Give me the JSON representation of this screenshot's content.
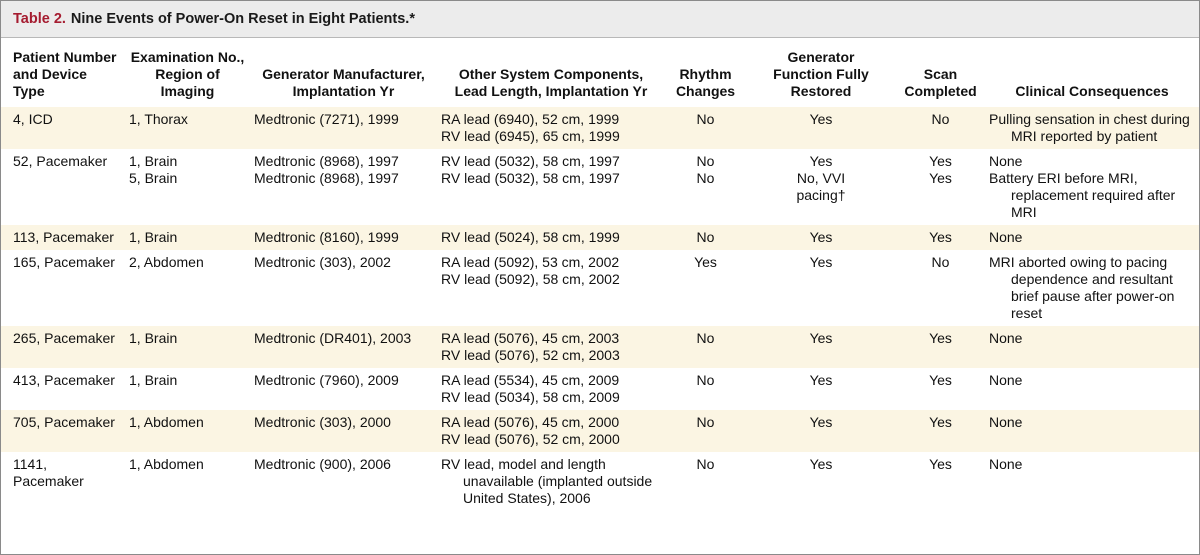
{
  "title": {
    "label": "Table 2.",
    "text": "Nine Events of Power-On Reset in Eight Patients.*"
  },
  "columns": [
    [
      "Patient Number",
      "and Device Type"
    ],
    [
      "Examination No.,",
      "Region of Imaging"
    ],
    [
      "Generator Manufacturer,",
      "Implantation Yr"
    ],
    [
      "Other System Components,",
      "Lead Length, Implantation Yr"
    ],
    [
      "Rhythm",
      "Changes"
    ],
    [
      "Generator",
      "Function Fully",
      "Restored"
    ],
    [
      "Scan",
      "Completed"
    ],
    [
      "Clinical Consequences"
    ]
  ],
  "rows": [
    {
      "patient": "4, ICD",
      "exam": [
        "1, Thorax"
      ],
      "generator": [
        "Medtronic (7271), 1999"
      ],
      "components": [
        "RA lead (6940), 52 cm, 1999",
        "RV lead (6945), 65 cm, 1999"
      ],
      "rhythm": [
        "No"
      ],
      "restored": [
        "Yes"
      ],
      "scan": [
        "No"
      ],
      "consequences": [
        "Pulling sensation in chest during MRI reported by patient"
      ]
    },
    {
      "patient": "52, Pacemaker",
      "exam": [
        "1, Brain",
        "5, Brain"
      ],
      "generator": [
        "Medtronic (8968), 1997",
        "Medtronic (8968), 1997"
      ],
      "components": [
        "RV lead (5032), 58 cm, 1997",
        "RV lead (5032), 58 cm, 1997"
      ],
      "rhythm": [
        "No",
        "No"
      ],
      "restored": [
        "Yes",
        "No, VVI",
        "pacing†"
      ],
      "scan": [
        "Yes",
        "Yes"
      ],
      "consequences": [
        "None",
        "Battery ERI before MRI, replacement required after MRI"
      ]
    },
    {
      "patient": "113, Pacemaker",
      "exam": [
        "1, Brain"
      ],
      "generator": [
        "Medtronic (8160), 1999"
      ],
      "components": [
        "RV lead (5024), 58 cm, 1999"
      ],
      "rhythm": [
        "No"
      ],
      "restored": [
        "Yes"
      ],
      "scan": [
        "Yes"
      ],
      "consequences": [
        "None"
      ]
    },
    {
      "patient": "165, Pacemaker",
      "exam": [
        "2, Abdomen"
      ],
      "generator": [
        "Medtronic (303), 2002"
      ],
      "components": [
        "RA lead (5092), 53 cm, 2002",
        "RV lead (5092), 58 cm, 2002"
      ],
      "rhythm": [
        "Yes"
      ],
      "restored": [
        "Yes"
      ],
      "scan": [
        "No"
      ],
      "consequences": [
        "MRI aborted owing to pacing dependence and resultant brief pause after power-on reset"
      ]
    },
    {
      "patient": "265, Pacemaker",
      "exam": [
        "1, Brain"
      ],
      "generator": [
        "Medtronic (DR401), 2003"
      ],
      "components": [
        "RA lead (5076), 45 cm, 2003",
        "RV lead (5076), 52 cm, 2003"
      ],
      "rhythm": [
        "No"
      ],
      "restored": [
        "Yes"
      ],
      "scan": [
        "Yes"
      ],
      "consequences": [
        "None"
      ]
    },
    {
      "patient": "413, Pacemaker",
      "exam": [
        "1, Brain"
      ],
      "generator": [
        "Medtronic (7960), 2009"
      ],
      "components": [
        "RA lead (5534), 45 cm, 2009",
        "RV lead (5034), 58 cm, 2009"
      ],
      "rhythm": [
        "No"
      ],
      "restored": [
        "Yes"
      ],
      "scan": [
        "Yes"
      ],
      "consequences": [
        "None"
      ]
    },
    {
      "patient": "705, Pacemaker",
      "exam": [
        "1, Abdomen"
      ],
      "generator": [
        "Medtronic (303), 2000"
      ],
      "components": [
        "RA lead (5076), 45 cm, 2000",
        "RV lead (5076), 52 cm, 2000"
      ],
      "rhythm": [
        "No"
      ],
      "restored": [
        "Yes"
      ],
      "scan": [
        "Yes"
      ],
      "consequences": [
        "None"
      ]
    },
    {
      "patient": "1141, Pacemaker",
      "exam": [
        "1, Abdomen"
      ],
      "generator": [
        "Medtronic (900), 2006"
      ],
      "components": [
        "RV lead, model and length unavailable (implanted outside United States), 2006"
      ],
      "rhythm": [
        "No"
      ],
      "restored": [
        "Yes"
      ],
      "scan": [
        "Yes"
      ],
      "consequences": [
        "None"
      ]
    }
  ]
}
